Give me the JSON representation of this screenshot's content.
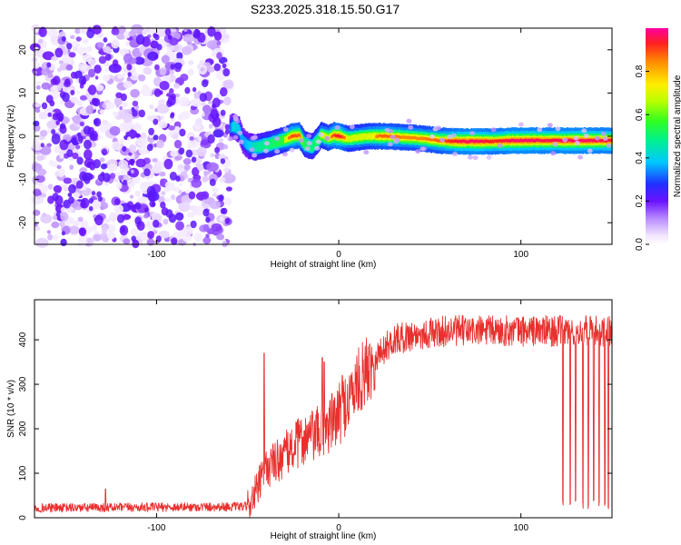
{
  "title": "S233.2025.318.15.50.G17",
  "chart_data": [
    {
      "type": "heatmap",
      "name": "spectrogram",
      "xlabel": "Height of straight line (km)",
      "ylabel": "Frequency (Hz)",
      "xlim": [
        -167,
        150
      ],
      "ylim": [
        -25,
        25
      ],
      "xticks": [
        -100,
        0,
        100
      ],
      "yticks": [
        -20,
        -10,
        0,
        10,
        20
      ],
      "noise_region_x": [
        -167,
        -60
      ],
      "ridge": [
        {
          "x": -60,
          "y": 2.0,
          "amp": 0.45
        },
        {
          "x": -58,
          "y": 2.3,
          "amp": 0.6
        },
        {
          "x": -55,
          "y": 1.5,
          "amp": 0.55
        },
        {
          "x": -53,
          "y": -1.0,
          "amp": 0.5
        },
        {
          "x": -50,
          "y": -2.2,
          "amp": 0.55
        },
        {
          "x": -46,
          "y": -2.6,
          "amp": 0.65
        },
        {
          "x": -40,
          "y": -2.0,
          "amp": 0.7
        },
        {
          "x": -34,
          "y": -1.3,
          "amp": 0.75
        },
        {
          "x": -30,
          "y": -0.8,
          "amp": 0.8
        },
        {
          "x": -26,
          "y": 0.0,
          "amp": 0.9
        },
        {
          "x": -22,
          "y": 0.2,
          "amp": 0.88
        },
        {
          "x": -19,
          "y": -1.8,
          "amp": 0.75
        },
        {
          "x": -15,
          "y": -2.4,
          "amp": 0.7
        },
        {
          "x": -12,
          "y": -1.0,
          "amp": 0.75
        },
        {
          "x": -10,
          "y": 0.3,
          "amp": 0.8
        },
        {
          "x": -6,
          "y": -0.4,
          "amp": 0.82
        },
        {
          "x": -3,
          "y": 0.2,
          "amp": 0.9
        },
        {
          "x": 0,
          "y": 0.0,
          "amp": 0.95
        },
        {
          "x": 5,
          "y": -0.6,
          "amp": 0.8
        },
        {
          "x": 15,
          "y": 0.0,
          "amp": 0.82
        },
        {
          "x": 25,
          "y": 0.0,
          "amp": 0.88
        },
        {
          "x": 35,
          "y": -0.2,
          "amp": 0.85
        },
        {
          "x": 45,
          "y": -0.5,
          "amp": 0.85
        },
        {
          "x": 55,
          "y": -1.0,
          "amp": 0.88
        },
        {
          "x": 65,
          "y": -1.2,
          "amp": 0.95
        },
        {
          "x": 75,
          "y": -1.2,
          "amp": 0.97
        },
        {
          "x": 85,
          "y": -1.2,
          "amp": 0.92
        },
        {
          "x": 95,
          "y": -1.0,
          "amp": 0.97
        },
        {
          "x": 105,
          "y": -1.0,
          "amp": 0.97
        },
        {
          "x": 115,
          "y": -1.0,
          "amp": 0.95
        },
        {
          "x": 125,
          "y": -1.0,
          "amp": 0.97
        },
        {
          "x": 135,
          "y": -1.0,
          "amp": 0.97
        },
        {
          "x": 145,
          "y": -1.0,
          "amp": 0.95
        },
        {
          "x": 150,
          "y": -1.0,
          "amp": 0.95
        }
      ],
      "colorbar": {
        "label": "Normalized spectral amplitude",
        "ticks": [
          "0.0",
          "0.2",
          "0.4",
          "0.6",
          "0.8"
        ],
        "range": [
          0,
          1
        ]
      }
    },
    {
      "type": "line",
      "name": "snr",
      "xlabel": "Height of straight line (km)",
      "ylabel": "SNR (10 * v/v)",
      "xlim": [
        -167,
        150
      ],
      "ylim": [
        0,
        490
      ],
      "xticks": [
        -100,
        0,
        100
      ],
      "yticks": [
        0,
        100,
        200,
        300,
        400
      ],
      "color": "#e8302e",
      "trend": [
        {
          "x": -167,
          "y": 22
        },
        {
          "x": -50,
          "y": 25
        },
        {
          "x": -45,
          "y": 60
        },
        {
          "x": -40,
          "y": 110
        },
        {
          "x": -30,
          "y": 140
        },
        {
          "x": -20,
          "y": 175
        },
        {
          "x": -10,
          "y": 190
        },
        {
          "x": 0,
          "y": 230
        },
        {
          "x": 10,
          "y": 300
        },
        {
          "x": 20,
          "y": 360
        },
        {
          "x": 30,
          "y": 400
        },
        {
          "x": 40,
          "y": 410
        },
        {
          "x": 60,
          "y": 420
        },
        {
          "x": 90,
          "y": 420
        },
        {
          "x": 120,
          "y": 420
        },
        {
          "x": 150,
          "y": 420
        }
      ],
      "spikes": [
        {
          "x": -128,
          "y": 65
        },
        {
          "x": -41,
          "y": 370
        },
        {
          "x": -9,
          "y": 360
        },
        {
          "x": -8,
          "y": 350
        },
        {
          "x": 2,
          "y": 320
        }
      ],
      "dropouts_x": [
        123,
        127,
        130,
        134,
        137,
        140,
        143,
        146,
        148
      ]
    }
  ]
}
